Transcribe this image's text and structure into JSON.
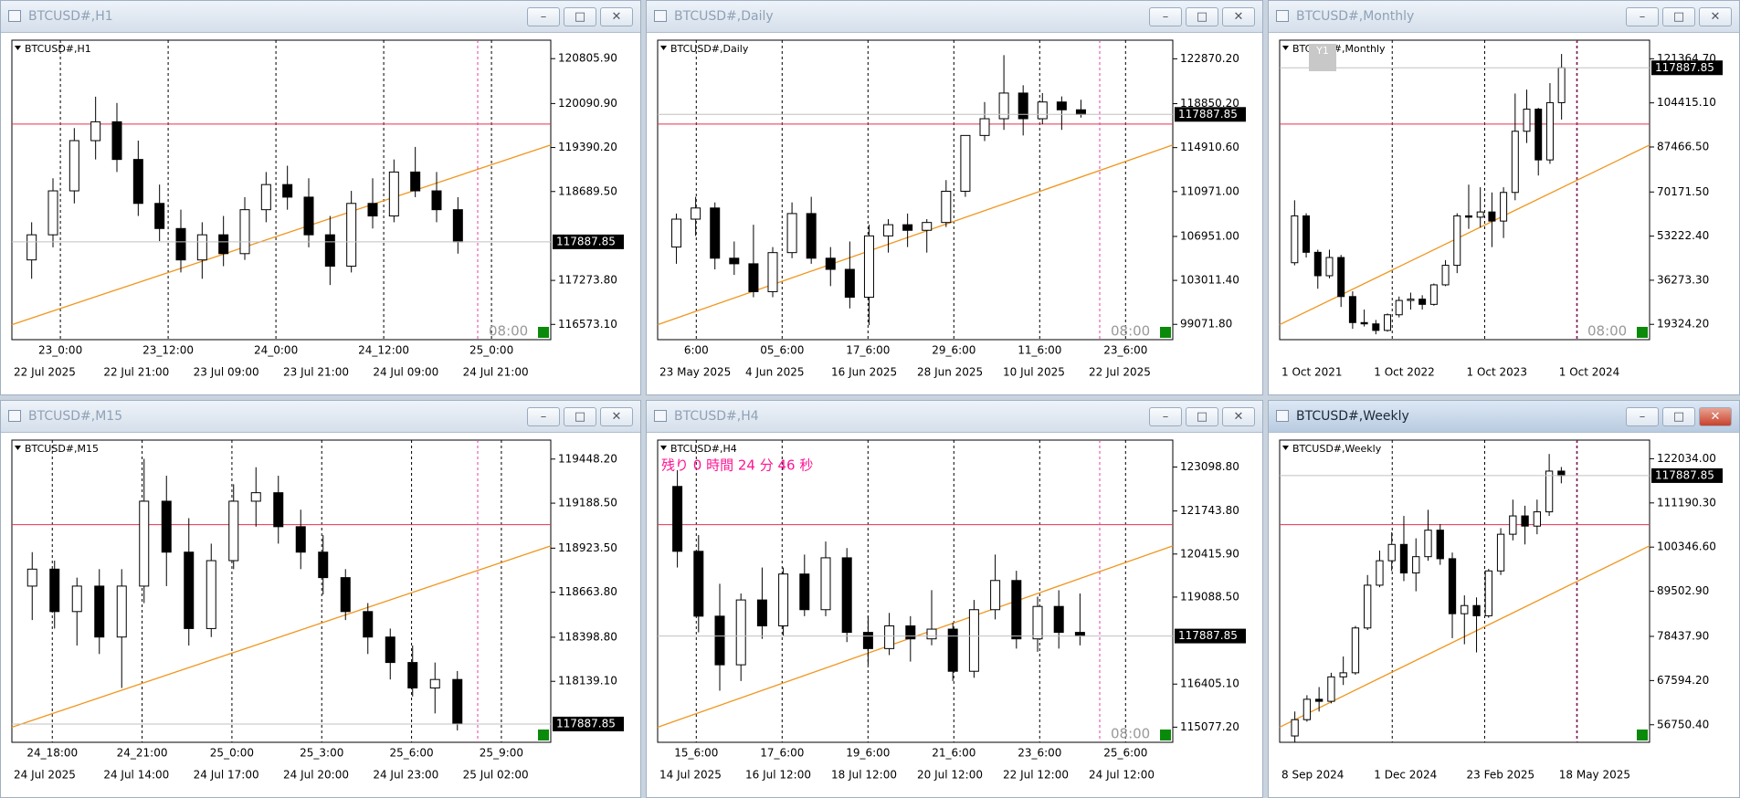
{
  "windows": [
    {
      "title": "BTCUSD#,H1",
      "symbol": "BTCUSD#,H1",
      "ylim": [
        116330,
        121100
      ],
      "yticks": [
        {
          "value": 120805.9,
          "label": "120805.90"
        },
        {
          "value": 120090.9,
          "label": "120090.90"
        },
        {
          "value": 119390.2,
          "label": "119390.20"
        },
        {
          "value": 118689.5,
          "label": "118689.50"
        },
        {
          "value": 117273.8,
          "label": "117273.80"
        },
        {
          "value": 116573.1,
          "label": "116573.10"
        }
      ],
      "current": {
        "value": 117887.85,
        "label": "117887.85"
      },
      "countdown": "08:00",
      "time_top": [
        "23_0:00",
        "23_12:00",
        "24_0:00",
        "24_12:00",
        "25_0:00"
      ],
      "time_bottom": [
        "22 Jul 2025",
        "22 Jul 21:00",
        "23 Jul 09:00",
        "23 Jul 21:00",
        "24 Jul 09:00",
        "24 Jul 21:00"
      ],
      "candles": [
        [
          117600,
          118200,
          117300,
          118000
        ],
        [
          118000,
          118900,
          117800,
          118700
        ],
        [
          118700,
          119700,
          118500,
          119500
        ],
        [
          119500,
          120200,
          119200,
          119800
        ],
        [
          119800,
          120100,
          119000,
          119200
        ],
        [
          119200,
          119500,
          118300,
          118500
        ],
        [
          118500,
          118800,
          117900,
          118100
        ],
        [
          118100,
          118400,
          117400,
          117600
        ],
        [
          117600,
          118200,
          117300,
          118000
        ],
        [
          118000,
          118300,
          117500,
          117700
        ],
        [
          117700,
          118600,
          117600,
          118400
        ],
        [
          118400,
          119000,
          118200,
          118800
        ],
        [
          118800,
          119100,
          118400,
          118600
        ],
        [
          118600,
          118900,
          117800,
          118000
        ],
        [
          118000,
          118300,
          117200,
          117500
        ],
        [
          117500,
          118700,
          117400,
          118500
        ],
        [
          118500,
          118900,
          118100,
          118300
        ],
        [
          118300,
          119200,
          118200,
          119000
        ],
        [
          119000,
          119400,
          118600,
          118700
        ],
        [
          118700,
          119000,
          118200,
          118400
        ],
        [
          118400,
          118600,
          117700,
          117887.85
        ]
      ]
    },
    {
      "title": "BTCUSD#,Daily",
      "symbol": "BTCUSD#,Daily",
      "ylim": [
        97700,
        124540
      ],
      "yticks": [
        {
          "value": 122870.2,
          "label": "122870.20"
        },
        {
          "value": 118850.2,
          "label": "118850.20"
        },
        {
          "value": 114910.6,
          "label": "114910.60"
        },
        {
          "value": 110971,
          "label": "110971.00"
        },
        {
          "value": 106951,
          "label": "106951.00"
        },
        {
          "value": 103011.4,
          "label": "103011.40"
        },
        {
          "value": 99071.8,
          "label": "99071.80"
        }
      ],
      "current": {
        "value": 117887.85,
        "label": "117887.85"
      },
      "countdown": "08:00",
      "time_top": [
        "6:00",
        "05_6:00",
        "17_6:00",
        "29_6:00",
        "11_6:00",
        "23_6:00"
      ],
      "time_bottom": [
        "23 May 2025",
        "4 Jun 2025",
        "16 Jun 2025",
        "28 Jun 2025",
        "10 Jul 2025",
        "22 Jul 2025"
      ],
      "candles": [
        [
          106000,
          109000,
          104500,
          108500
        ],
        [
          108500,
          110500,
          107000,
          109500
        ],
        [
          109500,
          110000,
          104000,
          105000
        ],
        [
          105000,
          106500,
          103500,
          104500
        ],
        [
          104500,
          108000,
          101500,
          102000
        ],
        [
          102000,
          106000,
          101500,
          105500
        ],
        [
          105500,
          110000,
          105000,
          109000
        ],
        [
          109000,
          110500,
          104500,
          105000
        ],
        [
          105000,
          106000,
          102500,
          104000
        ],
        [
          104000,
          106500,
          100500,
          101500
        ],
        [
          101500,
          108000,
          99000,
          107000
        ],
        [
          107000,
          108500,
          105500,
          108000
        ],
        [
          108000,
          109000,
          106000,
          107500
        ],
        [
          107500,
          108500,
          105500,
          108200
        ],
        [
          108200,
          112000,
          107800,
          111000
        ],
        [
          111000,
          116000,
          110500,
          116000
        ],
        [
          116000,
          119000,
          115500,
          117500
        ],
        [
          117500,
          123200,
          116500,
          119800
        ],
        [
          119800,
          120500,
          116000,
          117500
        ],
        [
          117500,
          119800,
          117000,
          119000
        ],
        [
          119000,
          119500,
          116500,
          118300
        ],
        [
          118300,
          119200,
          117600,
          117887.85
        ]
      ]
    },
    {
      "title": "BTCUSD#,Monthly",
      "symbol": "BTCUSD#,Monthly",
      "ylim": [
        13440,
        128500
      ],
      "badge": "Y1",
      "yticks": [
        {
          "value": 121364.7,
          "label": "121364.70"
        },
        {
          "value": 104415.1,
          "label": "104415.10"
        },
        {
          "value": 87466.5,
          "label": "87466.50"
        },
        {
          "value": 70171.5,
          "label": "70171.50"
        },
        {
          "value": 53222.4,
          "label": "53222.40"
        },
        {
          "value": 36273.3,
          "label": "36273.30"
        },
        {
          "value": 19324.2,
          "label": "19324.20"
        }
      ],
      "current": {
        "value": 117887.85,
        "label": "117887.85"
      },
      "countdown": "08:00",
      "time_top": [],
      "time_bottom": [
        "1 Oct 2021",
        "1 Oct 2022",
        "1 Oct 2023",
        "1 Oct 2024"
      ],
      "candles": [
        [
          43000,
          67000,
          42000,
          61000
        ],
        [
          61000,
          62000,
          45000,
          47000
        ],
        [
          47000,
          48000,
          33000,
          38000
        ],
        [
          38000,
          48000,
          37000,
          45000
        ],
        [
          45000,
          46000,
          26000,
          30000
        ],
        [
          30000,
          32000,
          17600,
          20000
        ],
        [
          20000,
          25000,
          18500,
          19500
        ],
        [
          19500,
          21000,
          15500,
          17000
        ],
        [
          17000,
          23500,
          16500,
          23000
        ],
        [
          23000,
          30000,
          22000,
          28500
        ],
        [
          28500,
          31500,
          25000,
          29000
        ],
        [
          29000,
          30500,
          25000,
          27000
        ],
        [
          27000,
          35000,
          26500,
          34500
        ],
        [
          34500,
          44000,
          34000,
          42000
        ],
        [
          42000,
          62000,
          39000,
          61000
        ],
        [
          61000,
          73000,
          56000,
          60500
        ],
        [
          60500,
          72000,
          56500,
          62500
        ],
        [
          62500,
          70000,
          49000,
          59000
        ],
        [
          59000,
          72000,
          52500,
          70000
        ],
        [
          70000,
          108000,
          67000,
          93500
        ],
        [
          93500,
          109500,
          89000,
          102000
        ],
        [
          102000,
          102500,
          76500,
          82500
        ],
        [
          82500,
          112000,
          81000,
          104500
        ],
        [
          104500,
          123200,
          98000,
          117887.85
        ]
      ]
    },
    {
      "title": "BTCUSD#,M15",
      "symbol": "BTCUSD#,M15",
      "ylim": [
        117780,
        119560
      ],
      "yticks": [
        {
          "value": 119448.2,
          "label": "119448.20"
        },
        {
          "value": 119188.5,
          "label": "119188.50"
        },
        {
          "value": 118923.5,
          "label": "118923.50"
        },
        {
          "value": 118663.8,
          "label": "118663.80"
        },
        {
          "value": 118398.8,
          "label": "118398.80"
        },
        {
          "value": 118139.1,
          "label": "118139.10"
        }
      ],
      "current": {
        "value": 117887.85,
        "label": "117887.85"
      },
      "time_top": [
        "24_18:00",
        "24_21:00",
        "25_0:00",
        "25_3:00",
        "25_6:00",
        "25_9:00"
      ],
      "time_bottom": [
        "24 Jul 2025",
        "24 Jul 14:00",
        "24 Jul 17:00",
        "24 Jul 20:00",
        "24 Jul 23:00",
        "25 Jul 02:00"
      ],
      "candles": [
        [
          118700,
          118900,
          118500,
          118800
        ],
        [
          118800,
          118850,
          118450,
          118550
        ],
        [
          118550,
          118750,
          118350,
          118700
        ],
        [
          118700,
          118800,
          118300,
          118400
        ],
        [
          118400,
          118800,
          118100,
          118700
        ],
        [
          118700,
          119450,
          118600,
          119200
        ],
        [
          119200,
          119350,
          118700,
          118900
        ],
        [
          118900,
          119100,
          118350,
          118450
        ],
        [
          118450,
          118950,
          118400,
          118850
        ],
        [
          118850,
          119300,
          118800,
          119200
        ],
        [
          119200,
          119400,
          119050,
          119250
        ],
        [
          119250,
          119350,
          118950,
          119050
        ],
        [
          119050,
          119150,
          118800,
          118900
        ],
        [
          118900,
          119000,
          118650,
          118750
        ],
        [
          118750,
          118800,
          118500,
          118550
        ],
        [
          118550,
          118600,
          118300,
          118400
        ],
        [
          118400,
          118450,
          118150,
          118250
        ],
        [
          118250,
          118350,
          118050,
          118100
        ],
        [
          118100,
          118250,
          117950,
          118150
        ],
        [
          118150,
          118200,
          117850,
          117887.85
        ]
      ]
    },
    {
      "title": "BTCUSD#,H4",
      "symbol": "BTCUSD#,H4",
      "ylim": [
        114610,
        123930
      ],
      "note": "残り 0 時間 24 分 46 秒",
      "yticks": [
        {
          "value": 123098.8,
          "label": "123098.80"
        },
        {
          "value": 121743.8,
          "label": "121743.80"
        },
        {
          "value": 120415.9,
          "label": "120415.90"
        },
        {
          "value": 119088.5,
          "label": "119088.50"
        },
        {
          "value": 116405.1,
          "label": "116405.10"
        },
        {
          "value": 115077.2,
          "label": "115077.20"
        }
      ],
      "current": {
        "value": 117887.85,
        "label": "117887.85"
      },
      "countdown": "08:00",
      "time_top": [
        "15_6:00",
        "17_6:00",
        "19_6:00",
        "21_6:00",
        "23_6:00",
        "25_6:00"
      ],
      "time_bottom": [
        "14 Jul 2025",
        "16 Jul 12:00",
        "18 Jul 12:00",
        "20 Jul 12:00",
        "22 Jul 12:00",
        "24 Jul 12:00"
      ],
      "candles": [
        [
          122500,
          123000,
          120000,
          120500
        ],
        [
          120500,
          121000,
          118000,
          118500
        ],
        [
          118500,
          119500,
          116200,
          117000
        ],
        [
          117000,
          119200,
          116500,
          119000
        ],
        [
          119000,
          120000,
          117800,
          118200
        ],
        [
          118200,
          120000,
          117900,
          119800
        ],
        [
          119800,
          120400,
          118500,
          118700
        ],
        [
          118700,
          120800,
          118500,
          120300
        ],
        [
          120300,
          120600,
          117700,
          118000
        ],
        [
          118000,
          118500,
          117000,
          117500
        ],
        [
          117500,
          118600,
          117300,
          118200
        ],
        [
          118200,
          118500,
          117100,
          117800
        ],
        [
          117800,
          119300,
          117600,
          118100
        ],
        [
          118100,
          118300,
          116500,
          116800
        ],
        [
          116800,
          119000,
          116600,
          118700
        ],
        [
          118700,
          120400,
          118400,
          119600
        ],
        [
          119600,
          119900,
          117500,
          117800
        ],
        [
          117800,
          119100,
          117400,
          118800
        ],
        [
          118800,
          119300,
          117500,
          118000
        ],
        [
          118000,
          119200,
          117600,
          117887.85
        ]
      ]
    },
    {
      "title": "BTCUSD#,Weekly",
      "symbol": "BTCUSD#,Weekly",
      "ylim": [
        52440,
        126610
      ],
      "yticks": [
        {
          "value": 122034,
          "label": "122034.00"
        },
        {
          "value": 111190.3,
          "label": "111190.30"
        },
        {
          "value": 100346.6,
          "label": "100346.60"
        },
        {
          "value": 89502.9,
          "label": "89502.90"
        },
        {
          "value": 78437.9,
          "label": "78437.90"
        },
        {
          "value": 67594.2,
          "label": "67594.20"
        },
        {
          "value": 56750.4,
          "label": "56750.40"
        }
      ],
      "current": {
        "value": 117887.85,
        "label": "117887.85"
      },
      "time_top": [],
      "time_bottom": [
        "8 Sep 2024",
        "1 Dec 2024",
        "23 Feb 2025",
        "18 May 2025"
      ],
      "candles": [
        [
          54000,
          60000,
          52500,
          58000
        ],
        [
          58000,
          64000,
          57500,
          63000
        ],
        [
          63000,
          66000,
          60000,
          62500
        ],
        [
          62500,
          69500,
          62000,
          68500
        ],
        [
          68500,
          73500,
          66500,
          69500
        ],
        [
          69500,
          81000,
          69000,
          80500
        ],
        [
          80500,
          93500,
          80000,
          91000
        ],
        [
          91000,
          99500,
          90500,
          97000
        ],
        [
          97000,
          104000,
          94500,
          101000
        ],
        [
          101000,
          108000,
          92000,
          94000
        ],
        [
          94000,
          102500,
          89500,
          98000
        ],
        [
          98000,
          109500,
          97000,
          104500
        ],
        [
          104500,
          106000,
          96000,
          97500
        ],
        [
          97500,
          99000,
          78000,
          84000
        ],
        [
          84000,
          88500,
          76500,
          86000
        ],
        [
          86000,
          88000,
          74500,
          83500
        ],
        [
          83500,
          95000,
          83000,
          94500
        ],
        [
          94500,
          105000,
          93500,
          103500
        ],
        [
          103500,
          112000,
          102000,
          108000
        ],
        [
          108000,
          110500,
          101000,
          105500
        ],
        [
          105500,
          112000,
          103500,
          109000
        ],
        [
          109000,
          123200,
          108000,
          119000
        ],
        [
          119000,
          120000,
          116000,
          117887.85
        ]
      ]
    }
  ]
}
